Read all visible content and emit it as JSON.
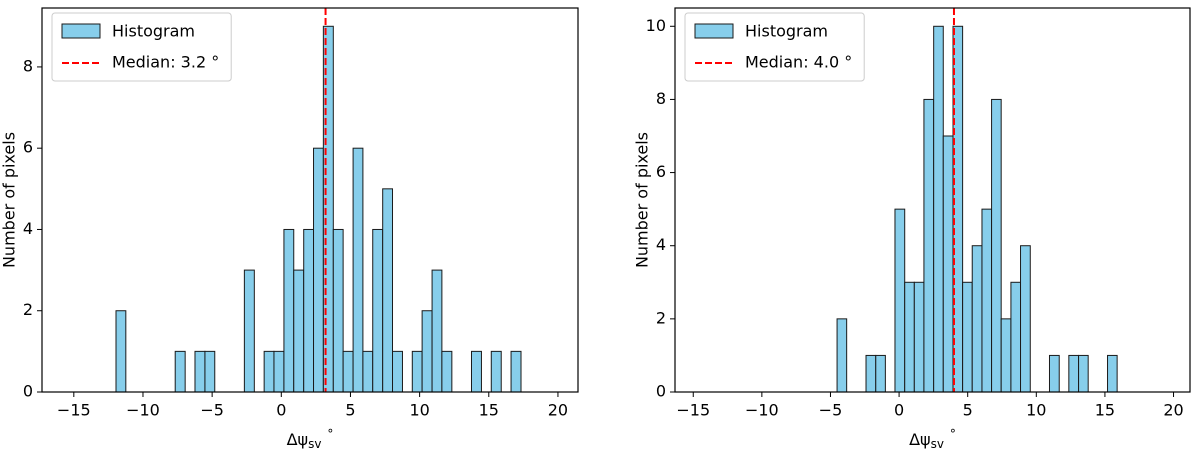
{
  "chart_data": [
    {
      "type": "histogram",
      "x_label": {
        "main": "Δψ",
        "sub": "sv",
        "suffix": "°"
      },
      "y_label": "Number of pixels",
      "bins": [
        -11.95,
        -11.24,
        -10.52,
        -9.81,
        -9.09,
        -8.38,
        -7.67,
        -6.95,
        -6.24,
        -5.52,
        -4.81,
        -4.1,
        -3.38,
        -2.67,
        -1.95,
        -1.24,
        -0.53,
        0.19,
        0.9,
        1.62,
        2.33,
        3.04,
        3.76,
        4.47,
        5.19,
        5.9,
        6.61,
        7.33,
        8.04,
        8.76,
        9.47,
        10.18,
        10.9,
        11.61,
        12.33,
        13.04,
        13.75,
        14.47,
        15.18,
        15.9,
        16.61,
        17.33
      ],
      "series": [
        {
          "name": "Histogram",
          "color": "#87ceeb",
          "values": [
            2,
            0,
            0,
            0,
            0,
            0,
            1,
            0,
            1,
            1,
            0,
            0,
            0,
            3,
            0,
            1,
            1,
            4,
            3,
            4,
            6,
            9,
            4,
            1,
            6,
            1,
            4,
            5,
            1,
            0,
            1,
            2,
            3,
            1,
            0,
            0,
            1,
            0,
            1,
            0,
            1
          ]
        }
      ],
      "median": {
        "name": "Median: 3.2 °",
        "value": 3.2,
        "color": "#ff0000"
      },
      "xlim": [
        -17.3,
        21.45
      ],
      "ylim": [
        0,
        9.45
      ],
      "xticks": [
        {
          "value": -15,
          "label": "−15"
        },
        {
          "value": -10,
          "label": "−10"
        },
        {
          "value": -5,
          "label": "−5"
        },
        0,
        5,
        10,
        15,
        20
      ],
      "yticks": [
        0,
        2,
        4,
        6,
        8
      ],
      "legend": "upper left"
    },
    {
      "type": "histogram",
      "x_label": {
        "main": "Δψ",
        "sub": "sv",
        "suffix": "°"
      },
      "y_label": "Number of pixels",
      "bins": [
        -4.52,
        -3.82,
        -3.11,
        -2.41,
        -1.7,
        -1.0,
        -0.3,
        0.41,
        1.11,
        1.81,
        2.52,
        3.22,
        3.93,
        4.63,
        5.33,
        6.04,
        6.74,
        7.44,
        8.15,
        8.85,
        9.56,
        10.26,
        10.96,
        11.67,
        12.37,
        13.08,
        13.78,
        14.48,
        15.19,
        15.89
      ],
      "series": [
        {
          "name": "Histogram",
          "color": "#87ceeb",
          "values": [
            2,
            0,
            0,
            1,
            1,
            0,
            5,
            3,
            3,
            8,
            10,
            7,
            10,
            3,
            4,
            5,
            8,
            2,
            3,
            4,
            0,
            0,
            1,
            0,
            1,
            1,
            0,
            0,
            1
          ]
        }
      ],
      "median": {
        "name": "Median: 4.0 °",
        "value": 4.0,
        "color": "#ff0000"
      },
      "xlim": [
        -16.33,
        21.2
      ],
      "ylim": [
        0,
        10.5
      ],
      "xticks": [
        {
          "value": -15,
          "label": "−15"
        },
        {
          "value": -10,
          "label": "−10"
        },
        {
          "value": -5,
          "label": "−5"
        },
        0,
        5,
        10,
        15,
        20
      ],
      "yticks": [
        0,
        2,
        4,
        6,
        8,
        10
      ],
      "legend": "upper left"
    }
  ]
}
